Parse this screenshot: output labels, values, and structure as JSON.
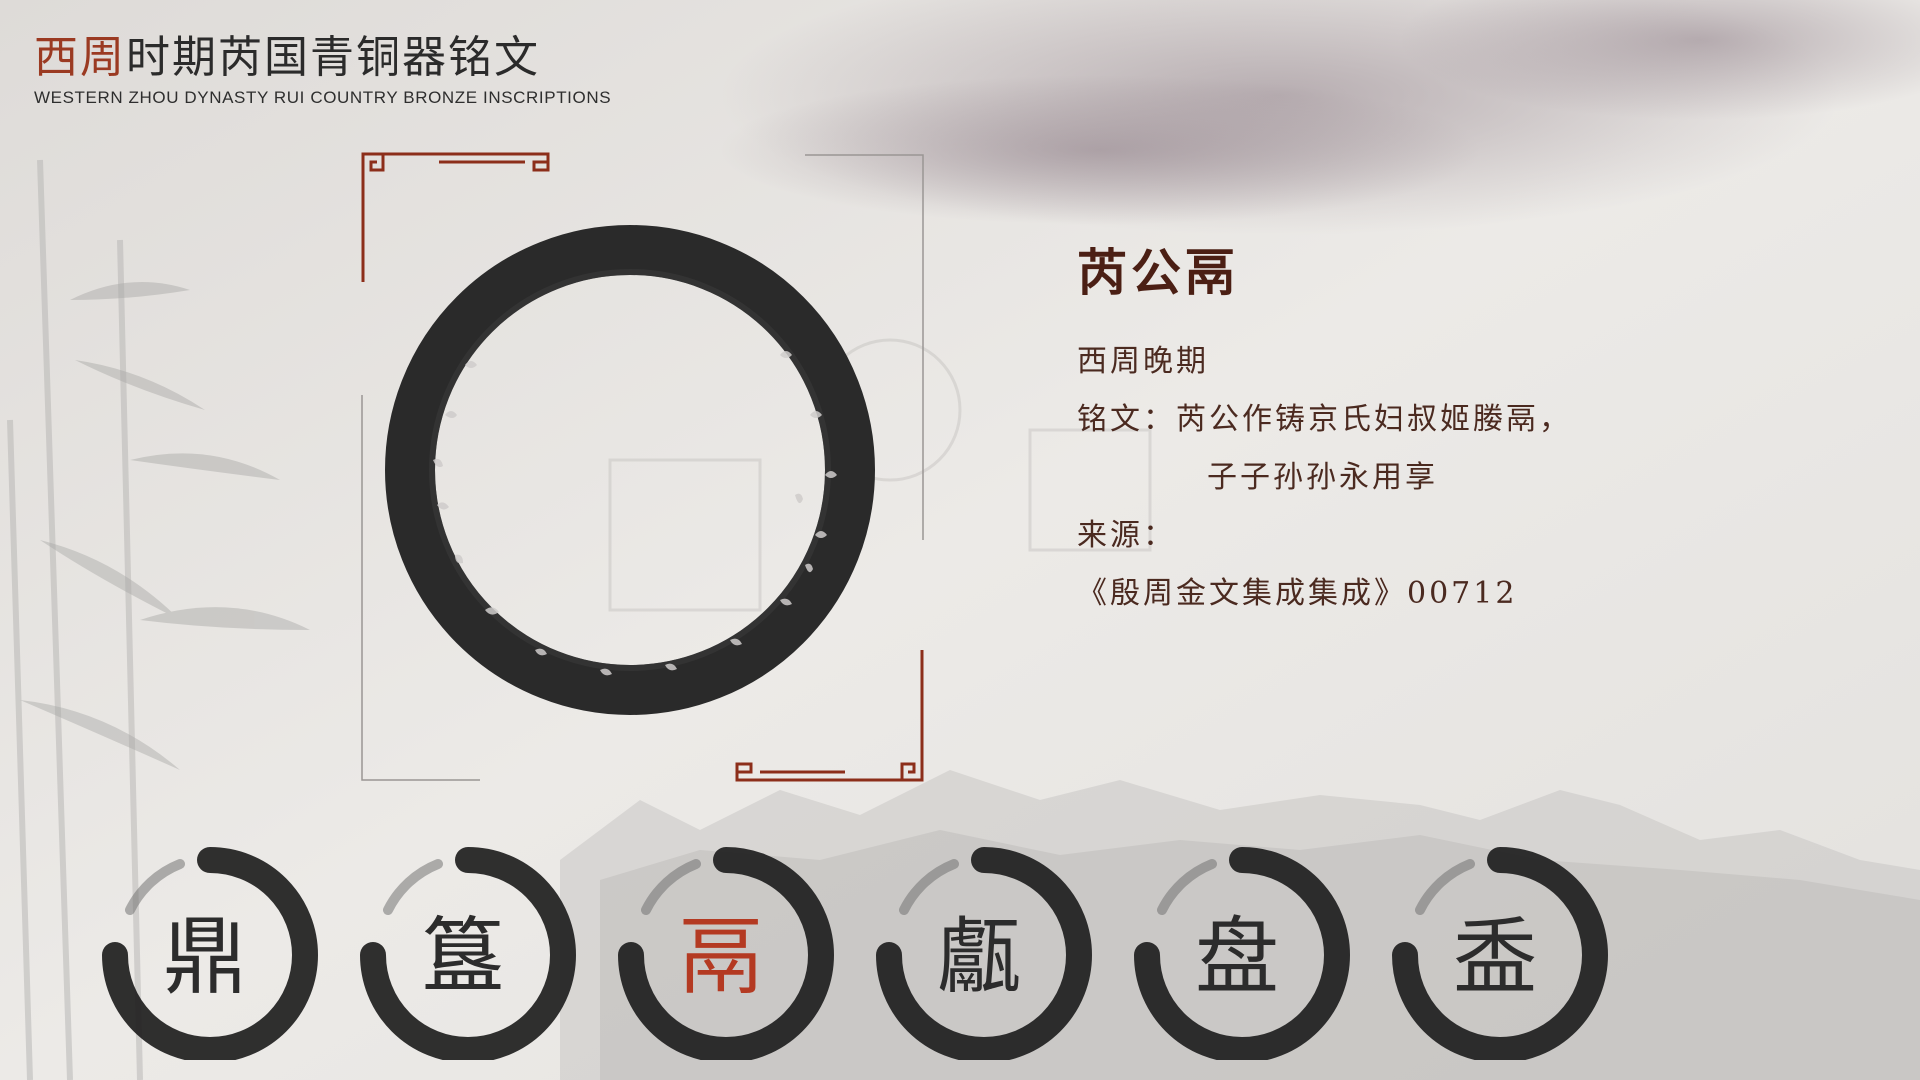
{
  "header": {
    "title_accent": "西周",
    "title_rest": "时期芮国青铜器铭文",
    "subtitle_en": "WESTERN ZHOU DYNASTY RUI COUNTRY BRONZE INSCRIPTIONS"
  },
  "artifact": {
    "name": "芮公鬲",
    "period": "西周晚期",
    "inscription_label": "铭文：",
    "inscription_line1": "芮公作铸京氏妇叔姬媵鬲，",
    "inscription_line2": "子子孙孙永用享",
    "source_label": "来源：",
    "source_value": "《殷周金文集成集成》00712",
    "rubbing_icon": "circular-inscription-rubbing"
  },
  "nav": {
    "items": [
      {
        "char": "鼎",
        "active": false
      },
      {
        "char": "簋",
        "active": false
      },
      {
        "char": "鬲",
        "active": true
      },
      {
        "char": "甗",
        "active": false
      },
      {
        "char": "盘",
        "active": false
      },
      {
        "char": "盉",
        "active": false
      }
    ]
  },
  "colors": {
    "accent": "#b43a22",
    "frame": "#8c2e1a",
    "ink": "#2a2a2a",
    "paper": "#e9e7e4"
  }
}
